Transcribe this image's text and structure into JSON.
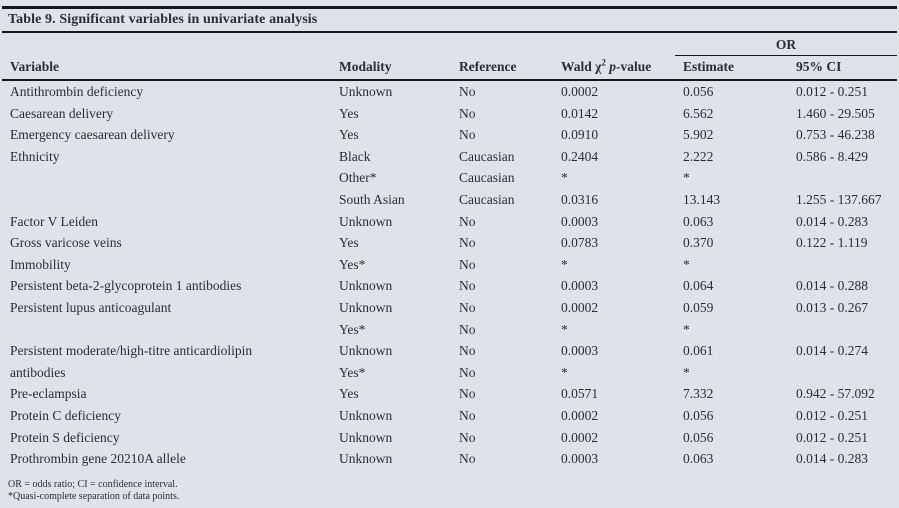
{
  "page": {
    "background_color": "#dfe2ea",
    "text_color": "#262d3c",
    "rule_color": "#14171e"
  },
  "title": "Table 9. Significant variables in univariate analysis",
  "table": {
    "or_group_label": "OR",
    "headers": {
      "variable": "Variable",
      "modality": "Modality",
      "reference": "Reference",
      "wald": {
        "pre": "Wald χ",
        "sup": "2",
        "p": "p",
        "post": "-value"
      },
      "estimate": "Estimate",
      "ci": "95% CI"
    },
    "rows": [
      {
        "variable": "Antithrombin deficiency",
        "modality": "Unknown",
        "reference": "No",
        "wald": "0.0002",
        "estimate": "0.056",
        "ci": "0.012 - 0.251"
      },
      {
        "variable": "Caesarean delivery",
        "modality": "Yes",
        "reference": "No",
        "wald": "0.0142",
        "estimate": "6.562",
        "ci": "1.460 - 29.505"
      },
      {
        "variable": "Emergency caesarean delivery",
        "modality": "Yes",
        "reference": "No",
        "wald": "0.0910",
        "estimate": "5.902",
        "ci": "0.753 - 46.238"
      },
      {
        "variable": "Ethnicity",
        "modality": "Black",
        "reference": "Caucasian",
        "wald": "0.2404",
        "estimate": "2.222",
        "ci": "0.586 - 8.429"
      },
      {
        "variable": "",
        "modality": "Other*",
        "reference": "Caucasian",
        "wald": "*",
        "estimate": "*",
        "ci": ""
      },
      {
        "variable": "",
        "modality": "South Asian",
        "reference": "Caucasian",
        "wald": "0.0316",
        "estimate": "13.143",
        "ci": "1.255 - 137.667"
      },
      {
        "variable": "Factor V Leiden",
        "modality": "Unknown",
        "reference": "No",
        "wald": "0.0003",
        "estimate": "0.063",
        "ci": "0.014 - 0.283"
      },
      {
        "variable": "Gross varicose veins",
        "modality": "Yes",
        "reference": "No",
        "wald": "0.0783",
        "estimate": "0.370",
        "ci": "0.122 - 1.119"
      },
      {
        "variable": "Immobility",
        "modality": "Yes*",
        "reference": "No",
        "wald": "*",
        "estimate": "*",
        "ci": ""
      },
      {
        "variable": "Persistent beta-2-glycoprotein 1 antibodies",
        "modality": "Unknown",
        "reference": "No",
        "wald": "0.0003",
        "estimate": "0.064",
        "ci": "0.014 - 0.288"
      },
      {
        "variable": "Persistent lupus anticoagulant",
        "modality": "Unknown",
        "reference": "No",
        "wald": "0.0002",
        "estimate": "0.059",
        "ci": "0.013 - 0.267"
      },
      {
        "variable": "",
        "modality": "Yes*",
        "reference": "No",
        "wald": "*",
        "estimate": "*",
        "ci": ""
      },
      {
        "variable": "Persistent moderate/high-titre anticardiolipin",
        "modality": "Unknown",
        "reference": "No",
        "wald": "0.0003",
        "estimate": "0.061",
        "ci": "0.014 - 0.274"
      },
      {
        "variable": "antibodies",
        "modality": "Yes*",
        "reference": "No",
        "wald": "*",
        "estimate": "*",
        "ci": ""
      },
      {
        "variable": "Pre-eclampsia",
        "modality": "Yes",
        "reference": "No",
        "wald": "0.0571",
        "estimate": "7.332",
        "ci": "0.942 - 57.092"
      },
      {
        "variable": "Protein C deficiency",
        "modality": "Unknown",
        "reference": "No",
        "wald": "0.0002",
        "estimate": "0.056",
        "ci": "0.012 - 0.251"
      },
      {
        "variable": "Protein S deficiency",
        "modality": "Unknown",
        "reference": "No",
        "wald": "0.0002",
        "estimate": "0.056",
        "ci": "0.012 - 0.251"
      },
      {
        "variable": "Prothrombin gene 20210A allele",
        "modality": "Unknown",
        "reference": "No",
        "wald": "0.0003",
        "estimate": "0.063",
        "ci": "0.014 - 0.283"
      }
    ]
  },
  "footnotes": {
    "line1": "OR = odds ratio; CI = confidence interval.",
    "line2": "*Quasi-complete separation of data points."
  }
}
